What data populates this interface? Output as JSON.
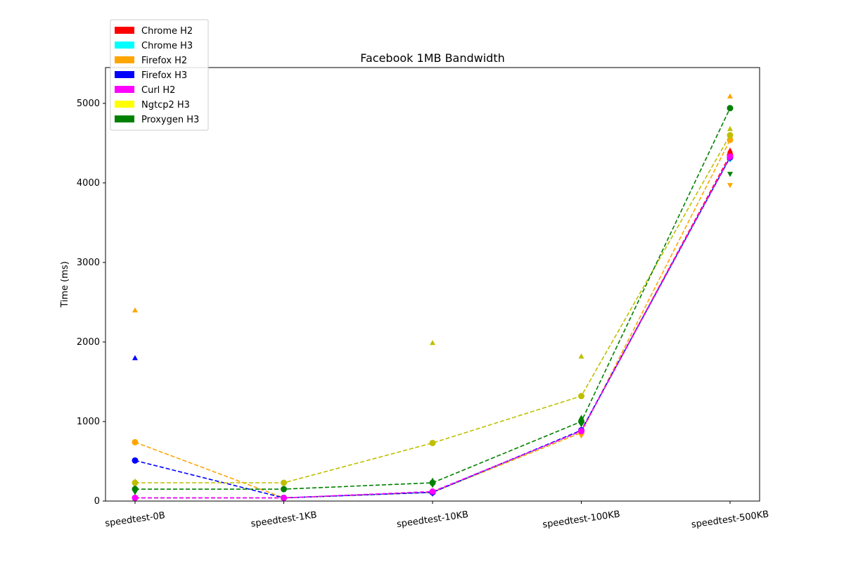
{
  "chart_data": {
    "type": "line",
    "title": "Facebook 1MB Bandwidth",
    "xlabel": "",
    "ylabel": "Time (ms)",
    "categories": [
      "speedtest-0B",
      "speedtest-1KB",
      "speedtest-10KB",
      "speedtest-100KB",
      "speedtest-500KB"
    ],
    "ylim": [
      0,
      5450
    ],
    "yticks": [
      0,
      1000,
      2000,
      3000,
      4000,
      5000
    ],
    "grid": false,
    "legend": {
      "placement": "top-left",
      "entries": [
        {
          "label": "Chrome H2",
          "color": "#ff0000"
        },
        {
          "label": "Chrome H3",
          "color": "#00ffff"
        },
        {
          "label": "Firefox H2",
          "color": "#ffa500"
        },
        {
          "label": "Firefox H3",
          "color": "#0000ff"
        },
        {
          "label": "Curl H2",
          "color": "#ff00ff"
        },
        {
          "label": "Ngtcp2 H3",
          "color": "#ffff00"
        },
        {
          "label": "Proxygen H3",
          "color": "#008000"
        }
      ]
    },
    "series": [
      {
        "name": "Chrome H2",
        "color": "#ff0000",
        "values": [
          40,
          40,
          110,
          880,
          4350
        ]
      },
      {
        "name": "Chrome H3",
        "color": "#00bfbf",
        "values": [
          40,
          40,
          110,
          880,
          4320
        ]
      },
      {
        "name": "Firefox H2",
        "color": "#ffa500",
        "values": [
          740,
          40,
          110,
          860,
          4540
        ]
      },
      {
        "name": "Firefox H3",
        "color": "#0000ff",
        "values": [
          510,
          40,
          110,
          890,
          4320
        ]
      },
      {
        "name": "Curl H2",
        "color": "#ff00ff",
        "values": [
          40,
          40,
          120,
          880,
          4330
        ]
      },
      {
        "name": "Ngtcp2 H3",
        "color": "#bfbf00",
        "values": [
          230,
          230,
          730,
          1320,
          4600
        ]
      },
      {
        "name": "Proxygen H3",
        "color": "#008000",
        "values": [
          150,
          150,
          230,
          1000,
          4940
        ]
      }
    ],
    "outliers": [
      {
        "category": "speedtest-0B",
        "value": 2400,
        "color": "#ffa500",
        "marker": "triangle-up"
      },
      {
        "category": "speedtest-0B",
        "value": 1800,
        "color": "#0000ff",
        "marker": "triangle-up"
      },
      {
        "category": "speedtest-0B",
        "value": 250,
        "color": "#bfbf00",
        "marker": "triangle-up"
      },
      {
        "category": "speedtest-0B",
        "value": 180,
        "color": "#008000",
        "marker": "triangle-up"
      },
      {
        "category": "speedtest-0B",
        "value": 110,
        "color": "#008000",
        "marker": "triangle-down"
      },
      {
        "category": "speedtest-0B",
        "value": 30,
        "color": "#00bfbf",
        "marker": "triangle-down"
      },
      {
        "category": "speedtest-10KB",
        "value": 1990,
        "color": "#bfbf00",
        "marker": "triangle-up"
      },
      {
        "category": "speedtest-10KB",
        "value": 260,
        "color": "#008000",
        "marker": "triangle-up"
      },
      {
        "category": "speedtest-10KB",
        "value": 200,
        "color": "#008000",
        "marker": "triangle-down"
      },
      {
        "category": "speedtest-10KB",
        "value": 90,
        "color": "#0000ff",
        "marker": "triangle-down"
      },
      {
        "category": "speedtest-100KB",
        "value": 1820,
        "color": "#bfbf00",
        "marker": "triangle-up"
      },
      {
        "category": "speedtest-100KB",
        "value": 1050,
        "color": "#008000",
        "marker": "triangle-up"
      },
      {
        "category": "speedtest-100KB",
        "value": 960,
        "color": "#008000",
        "marker": "triangle-down"
      },
      {
        "category": "speedtest-100KB",
        "value": 820,
        "color": "#ffa500",
        "marker": "triangle-down"
      },
      {
        "category": "speedtest-500KB",
        "value": 5090,
        "color": "#ffa500",
        "marker": "triangle-up"
      },
      {
        "category": "speedtest-500KB",
        "value": 4680,
        "color": "#bfbf00",
        "marker": "triangle-up"
      },
      {
        "category": "speedtest-500KB",
        "value": 4410,
        "color": "#ff0000",
        "marker": "triangle-up"
      },
      {
        "category": "speedtest-500KB",
        "value": 4290,
        "color": "#00bfbf",
        "marker": "triangle-down"
      },
      {
        "category": "speedtest-500KB",
        "value": 4110,
        "color": "#008000",
        "marker": "triangle-down"
      },
      {
        "category": "speedtest-500KB",
        "value": 3970,
        "color": "#ffa500",
        "marker": "triangle-down"
      }
    ]
  }
}
